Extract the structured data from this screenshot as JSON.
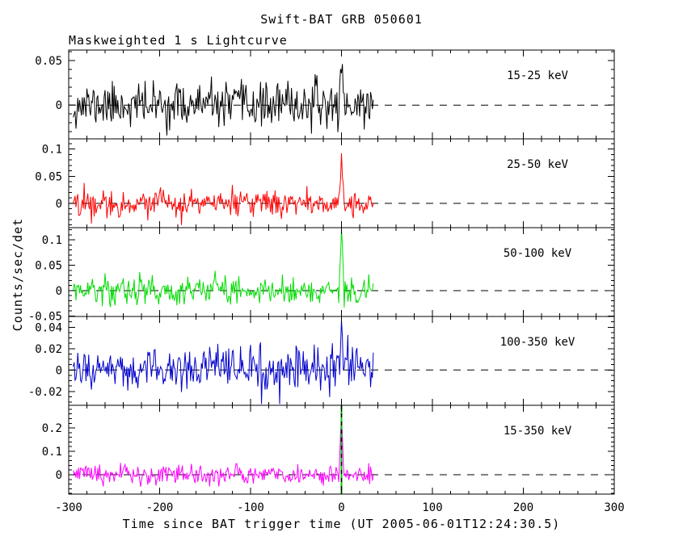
{
  "chart_data": {
    "type": "line",
    "title": "Swift-BAT GRB 050601",
    "subtitle": "Maskweighted 1 s Lightcurve",
    "xlabel": "Time since BAT trigger time (UT 2005-06-01T12:24:30.5)",
    "ylabel": "Counts/sec/det",
    "xlim": [
      -300,
      300
    ],
    "x_ticks": [
      -300,
      -200,
      -100,
      0,
      100,
      200,
      300
    ],
    "x_tick_labels": [
      "-300",
      "-200",
      "-100",
      "0",
      "100",
      "200",
      "300"
    ],
    "x_minor_step": 20,
    "data_time_range": [
      -295,
      35
    ],
    "bin_size_s": 1,
    "baseline": 0,
    "trigger_time_s": 0,
    "zero_line": {
      "style": "dashed",
      "color": "#000000"
    },
    "legend_position": "right-inside",
    "series": [
      {
        "name": "15-25 keV",
        "color": "#000000",
        "ylim": [
          -0.038,
          0.062
        ],
        "yticks": [
          0,
          0.05
        ],
        "ytick_labels": [
          "0",
          "0.05"
        ],
        "y_minor_step": 0.01,
        "noise_sigma": 0.012,
        "spike": {
          "t": 0,
          "amplitude": 0.05,
          "width_s": 1.2
        },
        "seed": 11
      },
      {
        "name": "25-50 keV",
        "color": "#ff0000",
        "ylim": [
          -0.045,
          0.119
        ],
        "yticks": [
          0,
          0.05,
          0.1
        ],
        "ytick_labels": [
          "0",
          "0.05",
          "0.1"
        ],
        "y_minor_step": 0.01,
        "noise_sigma": 0.012,
        "spike": {
          "t": 0,
          "amplitude": 0.093,
          "width_s": 1.1
        },
        "seed": 22
      },
      {
        "name": "50-100 keV",
        "color": "#00dd00",
        "ylim": [
          -0.051,
          0.124
        ],
        "yticks": [
          -0.05,
          0,
          0.05,
          0.1
        ],
        "ytick_labels": [
          "-0.05",
          "0",
          "0.05",
          "0.1"
        ],
        "y_minor_step": 0.01,
        "noise_sigma": 0.014,
        "spike": {
          "t": 0,
          "amplitude": 0.102,
          "width_s": 1.1
        },
        "seed": 33
      },
      {
        "name": "100-350 keV",
        "color": "#0000cd",
        "ylim": [
          -0.033,
          0.05
        ],
        "yticks": [
          -0.02,
          0,
          0.02,
          0.04
        ],
        "ytick_labels": [
          "-0.02",
          "0",
          "0.02",
          "0.04"
        ],
        "y_minor_step": 0.005,
        "noise_sigma": 0.01,
        "spike": {
          "t": 0,
          "amplitude": 0.042,
          "width_s": 1.1
        },
        "seed": 44
      },
      {
        "name": "15-350 keV",
        "color": "#ff00ff",
        "ylim": [
          -0.083,
          0.297
        ],
        "yticks": [
          0,
          0.1,
          0.2
        ],
        "ytick_labels": [
          "0",
          "0.1",
          "0.2"
        ],
        "y_minor_step": 0.02,
        "noise_sigma": 0.021,
        "spike": {
          "t": 0,
          "amplitude": 0.26,
          "width_s": 1.1
        },
        "seed": 55,
        "t0_marker": {
          "t": 0,
          "color": "#00cc00",
          "overlay_color": "#000000",
          "style": "dash-dot-vertical"
        }
      }
    ]
  }
}
